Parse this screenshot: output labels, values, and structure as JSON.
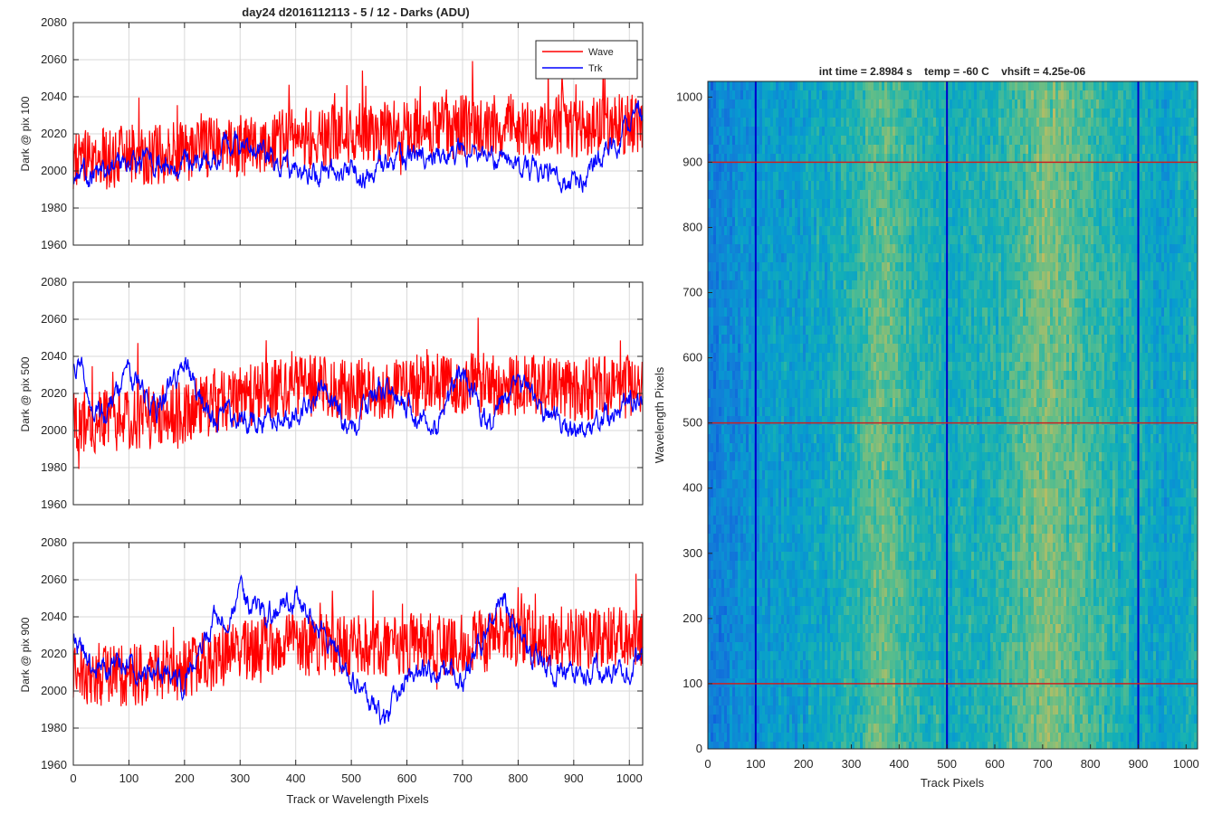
{
  "chart_data": [
    {
      "type": "line",
      "title": "day24 d2016112113 - 5 / 12 - Darks (ADU)",
      "xlabel": "",
      "ylabel": "Dark @ pix 100",
      "xlim": [
        0,
        1024
      ],
      "ylim": [
        1960,
        2080
      ],
      "xticks": [
        0,
        100,
        200,
        300,
        400,
        500,
        600,
        700,
        800,
        900,
        1000
      ],
      "yticks": [
        1960,
        1980,
        2000,
        2020,
        2040,
        2060,
        2080
      ],
      "grid": true,
      "legend": "top-right",
      "series": [
        {
          "name": "Wave",
          "color": "#ff0000",
          "x": [
            0,
            100,
            200,
            300,
            400,
            500,
            600,
            700,
            800,
            900,
            1024
          ],
          "values": [
            2005,
            2008,
            2010,
            2014,
            2018,
            2020,
            2022,
            2024,
            2025,
            2024,
            2025
          ]
        },
        {
          "name": "Trk",
          "color": "#0000ff",
          "x": [
            0,
            100,
            200,
            300,
            400,
            500,
            600,
            700,
            800,
            900,
            1024
          ],
          "values": [
            1995,
            2005,
            2002,
            2015,
            2000,
            1997,
            2007,
            2012,
            2003,
            1992,
            2030
          ]
        }
      ]
    },
    {
      "type": "line",
      "title": "",
      "xlabel": "",
      "ylabel": "Dark @ pix 500",
      "xlim": [
        0,
        1024
      ],
      "ylim": [
        1960,
        2080
      ],
      "xticks": [
        0,
        100,
        200,
        300,
        400,
        500,
        600,
        700,
        800,
        900,
        1000
      ],
      "yticks": [
        1960,
        1980,
        2000,
        2020,
        2040,
        2060,
        2080
      ],
      "grid": true,
      "series": [
        {
          "name": "",
          "color": "#ff0000",
          "x": [
            0,
            100,
            200,
            300,
            400,
            500,
            600,
            700,
            800,
            900,
            1024
          ],
          "values": [
            2005,
            2005,
            2010,
            2018,
            2025,
            2022,
            2024,
            2025,
            2025,
            2022,
            2025
          ]
        },
        {
          "name": "",
          "color": "#0000ff",
          "x": [
            0,
            50,
            100,
            150,
            200,
            250,
            300,
            400,
            450,
            500,
            550,
            600,
            650,
            700,
            750,
            800,
            900,
            950,
            1024
          ],
          "values": [
            2038,
            2010,
            2032,
            2008,
            2038,
            2005,
            2005,
            2008,
            2024,
            1997,
            2025,
            2012,
            2000,
            2030,
            2002,
            2025,
            1997,
            2005,
            2020
          ]
        }
      ]
    },
    {
      "type": "line",
      "title": "",
      "xlabel": "Track or Wavelength Pixels",
      "ylabel": "Dark @ pix 900",
      "xlim": [
        0,
        1024
      ],
      "ylim": [
        1960,
        2080
      ],
      "xticks": [
        0,
        100,
        200,
        300,
        400,
        500,
        600,
        700,
        800,
        900,
        1000
      ],
      "yticks": [
        1960,
        1980,
        2000,
        2020,
        2040,
        2060,
        2080
      ],
      "grid": true,
      "series": [
        {
          "name": "",
          "color": "#ff0000",
          "x": [
            0,
            100,
            200,
            300,
            400,
            500,
            600,
            700,
            800,
            900,
            1024
          ],
          "values": [
            2010,
            2008,
            2012,
            2022,
            2025,
            2024,
            2025,
            2025,
            2030,
            2028,
            2030
          ]
        },
        {
          "name": "",
          "color": "#0000ff",
          "x": [
            0,
            50,
            100,
            150,
            200,
            250,
            300,
            350,
            400,
            450,
            500,
            560,
            600,
            650,
            700,
            770,
            800,
            850,
            900,
            1024
          ],
          "values": [
            2025,
            2010,
            2015,
            2008,
            2005,
            2035,
            2050,
            2040,
            2050,
            2030,
            2010,
            1985,
            2008,
            2015,
            2005,
            2050,
            2030,
            2012,
            2008,
            2015
          ]
        }
      ]
    },
    {
      "type": "heatmap",
      "title": "int time = 2.8984 s    temp = -60 C    vhsift = 4.25e-06",
      "xlabel": "Track Pixels",
      "ylabel": "Wavelength Pixels",
      "xlim": [
        0,
        1024
      ],
      "ylim": [
        0,
        1024
      ],
      "xticks": [
        0,
        100,
        200,
        300,
        400,
        500,
        600,
        700,
        800,
        900,
        1000
      ],
      "yticks": [
        0,
        100,
        200,
        300,
        400,
        500,
        600,
        700,
        800,
        900,
        1000
      ],
      "colormap": "parula",
      "column_profile": {
        "x": [
          0,
          100,
          200,
          300,
          350,
          400,
          450,
          500,
          600,
          700,
          760,
          800,
          900,
          950,
          1024
        ],
        "level": [
          0.22,
          0.32,
          0.36,
          0.45,
          0.58,
          0.52,
          0.45,
          0.42,
          0.45,
          0.62,
          0.55,
          0.5,
          0.42,
          0.35,
          0.45
        ]
      },
      "vertical_lines": {
        "x": [
          100,
          500,
          900
        ],
        "color": "#0000cc"
      },
      "horizontal_lines": {
        "y": [
          100,
          500,
          900
        ],
        "color": "#cc2020"
      }
    }
  ]
}
